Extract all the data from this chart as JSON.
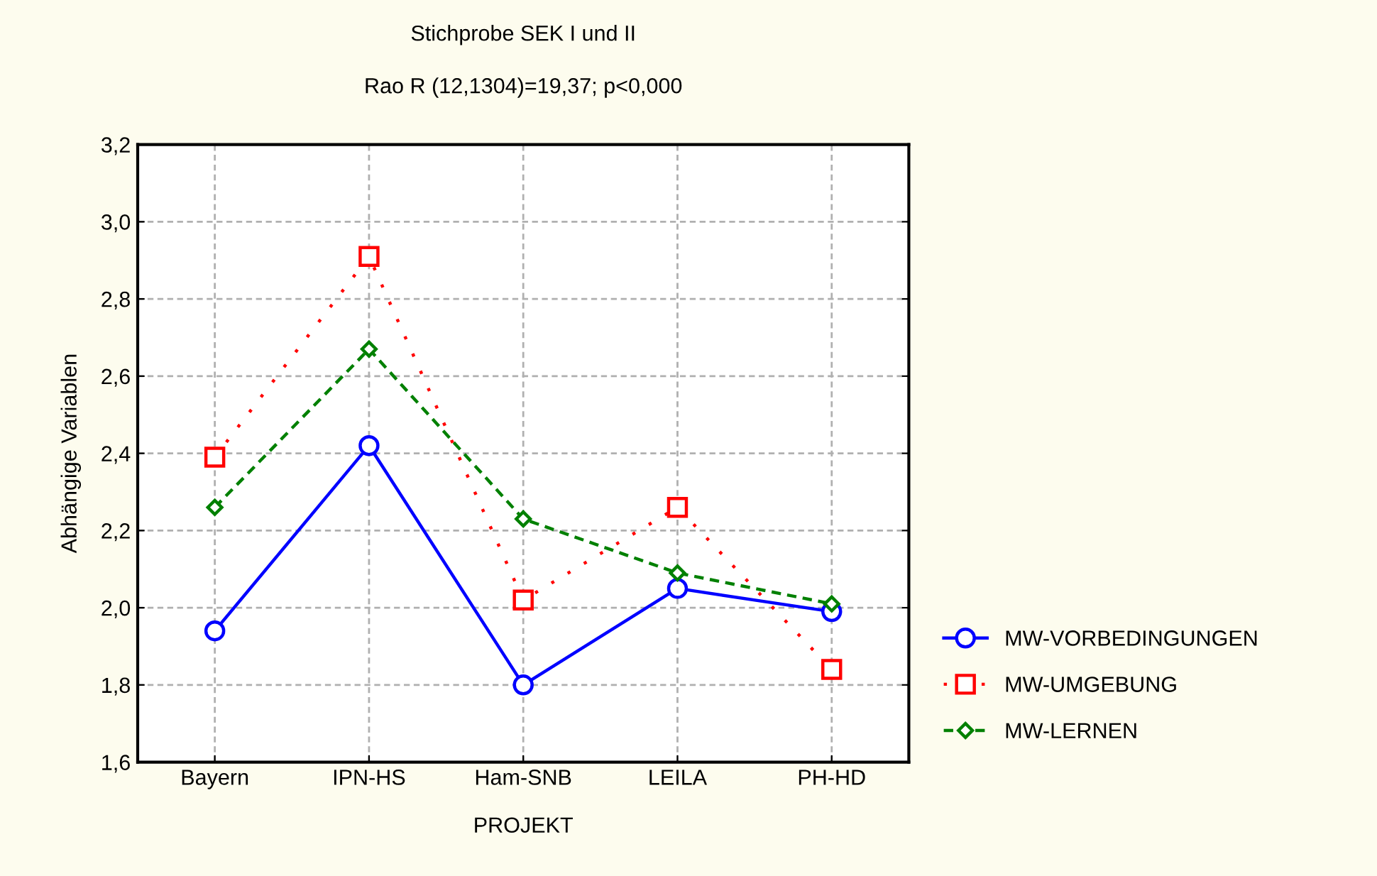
{
  "chart_data": {
    "type": "line",
    "title": "Stichprobe SEK I und II",
    "subtitle": "Rao R (12,1304)=19,37; p<0,000",
    "xlabel": "PROJEKT",
    "ylabel": "Abhängige Variablen",
    "categories": [
      "Bayern",
      "IPN-HS",
      "Ham-SNB",
      "LEILA",
      "PH-HD"
    ],
    "series": [
      {
        "name": "MW-VORBEDINGUNGEN",
        "color": "#0000ff",
        "marker": "circle",
        "line_style": "solid",
        "values": [
          1.94,
          2.42,
          1.8,
          2.05,
          1.99
        ]
      },
      {
        "name": "MW-UMGEBUNG",
        "color": "#ff0000",
        "marker": "square",
        "line_style": "dotted",
        "values": [
          2.39,
          2.91,
          2.02,
          2.26,
          1.84
        ]
      },
      {
        "name": "MW-LERNEN",
        "color": "#008000",
        "marker": "diamond",
        "line_style": "dashed",
        "values": [
          2.26,
          2.67,
          2.23,
          2.09,
          2.01
        ]
      }
    ],
    "ylim": [
      1.6,
      3.2
    ],
    "yticks": [
      {
        "value": 1.6,
        "label": "1,6"
      },
      {
        "value": 1.8,
        "label": "1,8"
      },
      {
        "value": 2.0,
        "label": "2,0"
      },
      {
        "value": 2.2,
        "label": "2,2"
      },
      {
        "value": 2.4,
        "label": "2,4"
      },
      {
        "value": 2.6,
        "label": "2,6"
      },
      {
        "value": 2.8,
        "label": "2,8"
      },
      {
        "value": 3.0,
        "label": "3,0"
      },
      {
        "value": 3.2,
        "label": "3,2"
      }
    ],
    "grid": true,
    "legend": "right"
  }
}
